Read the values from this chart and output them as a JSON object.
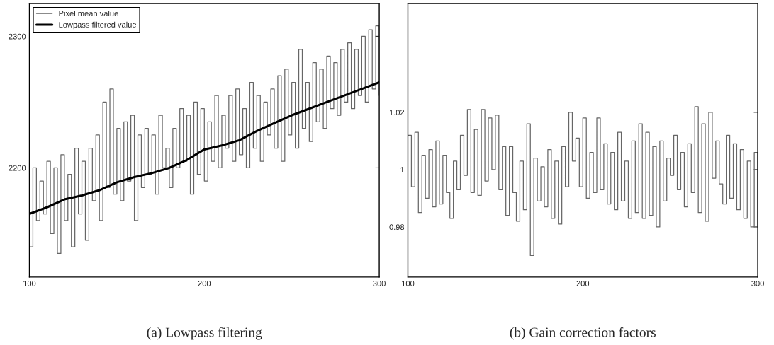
{
  "chart_data": [
    {
      "type": "step",
      "title": "(a) Lowpass filtering",
      "xlim": [
        100,
        300
      ],
      "xticks": [
        100,
        200,
        300
      ],
      "ylim": [
        2117,
        2325
      ],
      "yticks": [
        2200,
        2300
      ],
      "legend": "top left",
      "grid": false,
      "series": [
        {
          "name": "Pixel mean value",
          "color": "#666666",
          "x": [
            100,
            102,
            104,
            106,
            108,
            110,
            112,
            114,
            116,
            118,
            120,
            122,
            124,
            126,
            128,
            130,
            132,
            134,
            136,
            138,
            140,
            142,
            144,
            146,
            148,
            150,
            152,
            154,
            156,
            158,
            160,
            162,
            164,
            166,
            168,
            170,
            172,
            174,
            176,
            178,
            180,
            182,
            184,
            186,
            188,
            190,
            192,
            194,
            196,
            198,
            200,
            202,
            204,
            206,
            208,
            210,
            212,
            214,
            216,
            218,
            220,
            222,
            224,
            226,
            228,
            230,
            232,
            234,
            236,
            238,
            240,
            242,
            244,
            246,
            248,
            250,
            252,
            254,
            256,
            258,
            260,
            262,
            264,
            266,
            268,
            270,
            272,
            274,
            276,
            278,
            280,
            282,
            284,
            286,
            288,
            290,
            292,
            294,
            296,
            298,
            300
          ],
          "values": [
            2140,
            2200,
            2160,
            2190,
            2165,
            2205,
            2150,
            2200,
            2135,
            2210,
            2160,
            2195,
            2140,
            2215,
            2165,
            2205,
            2145,
            2215,
            2175,
            2225,
            2160,
            2250,
            2185,
            2260,
            2180,
            2230,
            2175,
            2235,
            2190,
            2240,
            2160,
            2225,
            2185,
            2230,
            2195,
            2225,
            2180,
            2240,
            2200,
            2215,
            2185,
            2230,
            2200,
            2245,
            2205,
            2240,
            2180,
            2250,
            2195,
            2245,
            2190,
            2235,
            2205,
            2255,
            2200,
            2240,
            2215,
            2255,
            2205,
            2260,
            2210,
            2245,
            2200,
            2265,
            2215,
            2255,
            2205,
            2250,
            2225,
            2260,
            2215,
            2270,
            2205,
            2275,
            2225,
            2265,
            2215,
            2290,
            2230,
            2265,
            2220,
            2280,
            2235,
            2275,
            2230,
            2285,
            2245,
            2280,
            2240,
            2290,
            2250,
            2295,
            2245,
            2290,
            2255,
            2300,
            2250,
            2305,
            2260,
            2308,
            2255
          ]
        },
        {
          "name": "Lowpass filtered value",
          "type": "line",
          "color": "#000000",
          "x": [
            100,
            110,
            120,
            130,
            140,
            150,
            160,
            170,
            180,
            190,
            200,
            210,
            220,
            230,
            240,
            250,
            260,
            270,
            280,
            290,
            300
          ],
          "values": [
            2165,
            2170,
            2176,
            2179,
            2183,
            2189,
            2193,
            2196,
            2200,
            2206,
            2214,
            2217,
            2221,
            2228,
            2234,
            2240,
            2245,
            2250,
            2255,
            2260,
            2265
          ]
        }
      ]
    },
    {
      "type": "step",
      "title": "(b) Gain correction factors",
      "xlim": [
        100,
        300
      ],
      "xticks": [
        100,
        200,
        300
      ],
      "ylim": [
        0.9625,
        1.058
      ],
      "yticks": [
        0.98,
        1,
        1.02
      ],
      "grid": false,
      "series": [
        {
          "color": "#666666",
          "x": [
            100,
            102,
            104,
            106,
            108,
            110,
            112,
            114,
            116,
            118,
            120,
            122,
            124,
            126,
            128,
            130,
            132,
            134,
            136,
            138,
            140,
            142,
            144,
            146,
            148,
            150,
            152,
            154,
            156,
            158,
            160,
            162,
            164,
            166,
            168,
            170,
            172,
            174,
            176,
            178,
            180,
            182,
            184,
            186,
            188,
            190,
            192,
            194,
            196,
            198,
            200,
            202,
            204,
            206,
            208,
            210,
            212,
            214,
            216,
            218,
            220,
            222,
            224,
            226,
            228,
            230,
            232,
            234,
            236,
            238,
            240,
            242,
            244,
            246,
            248,
            250,
            252,
            254,
            256,
            258,
            260,
            262,
            264,
            266,
            268,
            270,
            272,
            274,
            276,
            278,
            280,
            282,
            284,
            286,
            288,
            290,
            292,
            294,
            296,
            298,
            300
          ],
          "values": [
            1.012,
            0.994,
            1.013,
            0.985,
            1.005,
            0.99,
            1.007,
            0.987,
            1.01,
            0.988,
            1.005,
            0.992,
            0.983,
            1.003,
            0.993,
            1.012,
            0.998,
            1.021,
            0.992,
            1.014,
            0.991,
            1.021,
            0.996,
            1.018,
            1.0,
            1.019,
            0.993,
            1.008,
            0.984,
            1.008,
            0.992,
            0.982,
            1.003,
            0.986,
            1.016,
            0.97,
            1.004,
            0.989,
            1.001,
            0.987,
            1.007,
            0.983,
            1.003,
            0.981,
            1.008,
            0.994,
            1.02,
            1.003,
            1.011,
            0.994,
            1.018,
            0.99,
            1.006,
            0.992,
            1.018,
            0.993,
            1.009,
            0.988,
            1.006,
            0.986,
            1.013,
            0.989,
            1.003,
            0.983,
            1.01,
            0.985,
            1.016,
            0.983,
            1.013,
            0.984,
            1.008,
            0.98,
            1.01,
            0.989,
            1.004,
            0.998,
            1.012,
            0.993,
            1.006,
            0.987,
            1.009,
            0.992,
            1.022,
            0.985,
            1.016,
            0.982,
            1.02,
            0.997,
            1.01,
            0.995,
            0.988,
            1.012,
            0.99,
            1.009,
            0.986,
            1.007,
            0.983,
            1.003,
            0.98,
            1.006,
            0.98
          ]
        }
      ]
    }
  ]
}
